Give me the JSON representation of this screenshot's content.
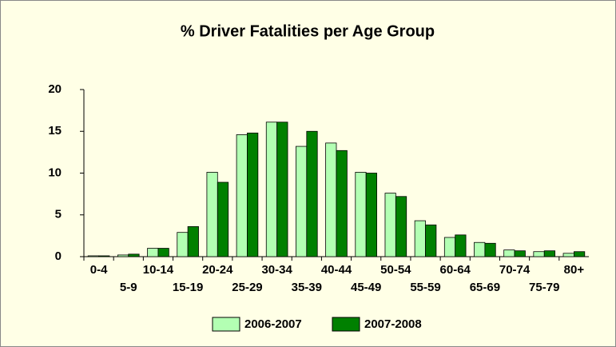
{
  "chart_data": {
    "type": "bar",
    "title": "% Driver Fatalities per Age Group",
    "categories": [
      "0-4",
      "5-9",
      "10-14",
      "15-19",
      "20-24",
      "25-29",
      "30-34",
      "35-39",
      "40-44",
      "45-49",
      "50-54",
      "55-59",
      "60-64",
      "65-69",
      "70-74",
      "75-79",
      "80+"
    ],
    "series": [
      {
        "name": "2006-2007",
        "color": "#b3ffb3",
        "values": [
          0.1,
          0.2,
          1.0,
          2.9,
          10.1,
          14.6,
          16.1,
          13.2,
          13.6,
          10.1,
          7.6,
          4.3,
          2.3,
          1.7,
          0.8,
          0.6,
          0.4
        ]
      },
      {
        "name": "2007-2008",
        "color": "#008000",
        "values": [
          0.1,
          0.3,
          1.0,
          3.6,
          8.9,
          14.8,
          16.1,
          15.0,
          12.7,
          10.0,
          7.2,
          3.8,
          2.6,
          1.6,
          0.7,
          0.7,
          0.6
        ]
      }
    ],
    "ylim": [
      0,
      20
    ],
    "yticks": [
      0,
      5,
      10,
      15,
      20
    ],
    "grid": false,
    "legend": "bottom"
  }
}
